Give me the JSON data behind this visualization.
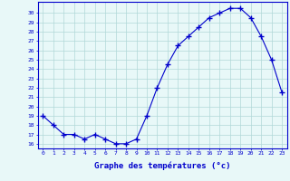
{
  "hours": [
    0,
    1,
    2,
    3,
    4,
    5,
    6,
    7,
    8,
    9,
    10,
    11,
    12,
    13,
    14,
    15,
    16,
    17,
    18,
    19,
    20,
    21,
    22,
    23
  ],
  "temps": [
    19,
    18,
    17,
    17,
    16.5,
    17,
    16.5,
    16,
    16,
    16.5,
    19,
    22,
    24.5,
    26.5,
    27.5,
    28.5,
    29.5,
    30,
    30.5,
    30.5,
    29.5,
    27.5,
    25,
    21.5
  ],
  "line_color": "#0000cc",
  "marker": "+",
  "bg_color": "#e8f8f8",
  "grid_color": "#b0d8d8",
  "xlabel": "Graphe des températures (°c)",
  "tick_color": "#0000cc",
  "ylim": [
    15.5,
    31.2
  ],
  "yticks": [
    16,
    17,
    18,
    19,
    20,
    21,
    22,
    23,
    24,
    25,
    26,
    27,
    28,
    29,
    30
  ],
  "spine_color": "#0000cc"
}
